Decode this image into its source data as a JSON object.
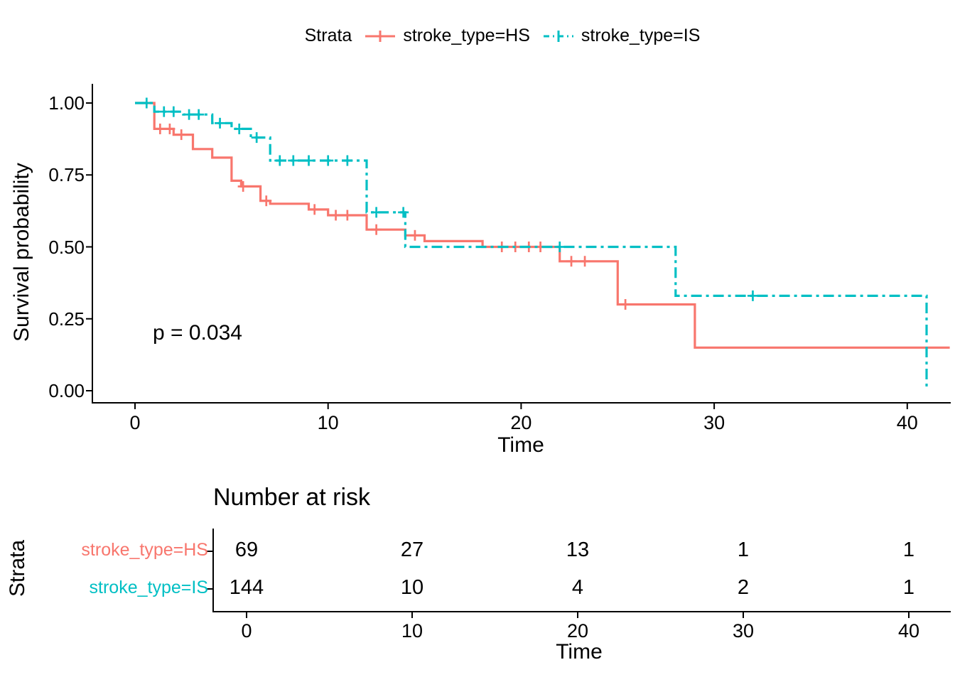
{
  "legend": {
    "title": "Strata",
    "items": [
      {
        "label": "stroke_type=HS"
      },
      {
        "label": "stroke_type=IS"
      }
    ]
  },
  "annotations": {
    "pvalue": "p = 0.034"
  },
  "chart_data": {
    "type": "line",
    "subtype": "kaplan-meier-step",
    "title": "",
    "xlabel": "Time",
    "ylabel": "Survival probability",
    "xlim": [
      0,
      42
    ],
    "ylim": [
      0,
      1
    ],
    "xticks": [
      0,
      10,
      20,
      30,
      40
    ],
    "yticks": [
      0,
      0.25,
      0.5,
      0.75,
      1
    ],
    "grid": false,
    "legend_position": "top",
    "series": [
      {
        "name": "stroke_type=HS",
        "color": "#F8766D",
        "linetype": "solid",
        "steps": [
          [
            0,
            1.0
          ],
          [
            1,
            0.91
          ],
          [
            2,
            0.89
          ],
          [
            3,
            0.84
          ],
          [
            4,
            0.81
          ],
          [
            5,
            0.73
          ],
          [
            5.5,
            0.71
          ],
          [
            6.5,
            0.66
          ],
          [
            7,
            0.65
          ],
          [
            9,
            0.63
          ],
          [
            10,
            0.61
          ],
          [
            12,
            0.56
          ],
          [
            14,
            0.54
          ],
          [
            15,
            0.52
          ],
          [
            18,
            0.5
          ],
          [
            22,
            0.45
          ],
          [
            25,
            0.3
          ],
          [
            29,
            0.15
          ]
        ],
        "extend_to": 42.2,
        "censors": [
          [
            1.3,
            0.91
          ],
          [
            1.8,
            0.91
          ],
          [
            2.4,
            0.89
          ],
          [
            5.6,
            0.71
          ],
          [
            6.8,
            0.66
          ],
          [
            9.3,
            0.63
          ],
          [
            10.4,
            0.61
          ],
          [
            11,
            0.61
          ],
          [
            12.5,
            0.56
          ],
          [
            14.5,
            0.54
          ],
          [
            19,
            0.5
          ],
          [
            19.7,
            0.5
          ],
          [
            20.4,
            0.5
          ],
          [
            21,
            0.5
          ],
          [
            22.6,
            0.45
          ],
          [
            23.3,
            0.45
          ],
          [
            25.4,
            0.3
          ]
        ]
      },
      {
        "name": "stroke_type=IS",
        "color": "#00BFC4",
        "linetype": "dashdot",
        "steps": [
          [
            0,
            1.0
          ],
          [
            1,
            0.97
          ],
          [
            2.5,
            0.96
          ],
          [
            4,
            0.93
          ],
          [
            5,
            0.91
          ],
          [
            6,
            0.88
          ],
          [
            7,
            0.8
          ],
          [
            12,
            0.62
          ],
          [
            14,
            0.5
          ],
          [
            28,
            0.33
          ],
          [
            41,
            0.0
          ]
        ],
        "extend_to": null,
        "censors": [
          [
            0.6,
            1.0
          ],
          [
            1.5,
            0.97
          ],
          [
            2.0,
            0.97
          ],
          [
            2.8,
            0.96
          ],
          [
            3.3,
            0.96
          ],
          [
            4.4,
            0.93
          ],
          [
            5.4,
            0.91
          ],
          [
            6.3,
            0.88
          ],
          [
            7.5,
            0.8
          ],
          [
            8.2,
            0.8
          ],
          [
            9.0,
            0.8
          ],
          [
            10.0,
            0.8
          ],
          [
            11.0,
            0.8
          ],
          [
            12.5,
            0.62
          ],
          [
            13.9,
            0.62
          ],
          [
            22,
            0.5
          ],
          [
            32,
            0.33
          ]
        ]
      }
    ]
  },
  "risk_table": {
    "title": "Number at risk",
    "axis_label": "Strata",
    "xlabel": "Time",
    "times": [
      0,
      10,
      20,
      30,
      40
    ],
    "rows": [
      {
        "label": "stroke_type=HS",
        "color": "#F8766D",
        "counts": [
          69,
          27,
          13,
          1,
          1
        ]
      },
      {
        "label": "stroke_type=IS",
        "color": "#00BFC4",
        "counts": [
          144,
          10,
          4,
          2,
          1
        ]
      }
    ]
  }
}
